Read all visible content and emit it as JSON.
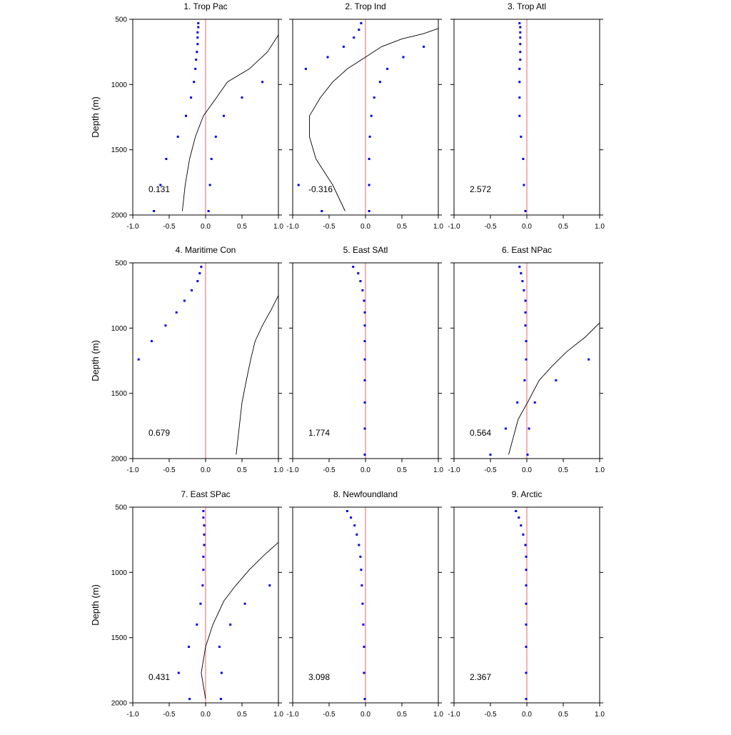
{
  "chart_data": {
    "type": "scatter",
    "layout": {
      "rows": 3,
      "cols": 3
    },
    "shared": {
      "ylabel": "Depth (m)",
      "y_reversed": true,
      "ylim": [
        500,
        2000
      ],
      "yticks": [
        500,
        1000,
        1500,
        2000
      ],
      "xlim": [
        -1.0,
        1.0
      ],
      "xticks": [
        -1.0,
        -0.5,
        0.0,
        0.5,
        1.0
      ],
      "xtick_labels": [
        "-1.0",
        "-0.5",
        "0.0",
        "0.5",
        "1.0"
      ],
      "ytick_labels": [
        "500",
        "1000",
        "1500",
        "2000"
      ],
      "grid": false,
      "zero_line_color": "#f08080",
      "dot_color": "#0000ee",
      "curve_color": "#000000"
    },
    "panels": [
      {
        "title": "1. Trop Pac",
        "score": "0.131",
        "dots_a": [
          [
            -0.1,
            530
          ],
          [
            -0.1,
            560
          ],
          [
            -0.11,
            600
          ],
          [
            -0.11,
            640
          ],
          [
            -0.11,
            690
          ],
          [
            -0.12,
            750
          ],
          [
            -0.13,
            810
          ],
          [
            -0.14,
            880
          ],
          [
            -0.16,
            980
          ],
          [
            -0.2,
            1100
          ],
          [
            -0.27,
            1240
          ],
          [
            -0.38,
            1400
          ],
          [
            -0.54,
            1570
          ],
          [
            -0.62,
            1770
          ],
          [
            -0.71,
            1970
          ]
        ],
        "dots_b": [
          [
            0.78,
            980
          ],
          [
            0.5,
            1100
          ],
          [
            0.25,
            1240
          ],
          [
            0.14,
            1400
          ],
          [
            0.08,
            1570
          ],
          [
            0.06,
            1770
          ],
          [
            0.04,
            1970
          ]
        ],
        "curve": [
          [
            1.0,
            620
          ],
          [
            0.85,
            750
          ],
          [
            0.6,
            880
          ],
          [
            0.3,
            980
          ],
          [
            0.15,
            1100
          ],
          [
            -0.03,
            1240
          ],
          [
            -0.14,
            1400
          ],
          [
            -0.22,
            1570
          ],
          [
            -0.28,
            1770
          ],
          [
            -0.32,
            1970
          ]
        ]
      },
      {
        "title": "2. Trop Ind",
        "score": "-0.316",
        "dots_a": [
          [
            -0.06,
            530
          ],
          [
            -0.09,
            580
          ],
          [
            -0.16,
            640
          ],
          [
            -0.3,
            710
          ],
          [
            -0.52,
            790
          ],
          [
            -0.82,
            880
          ],
          [
            -0.92,
            1770
          ],
          [
            -0.6,
            1970
          ]
        ],
        "dots_b": [
          [
            0.8,
            710
          ],
          [
            0.52,
            790
          ],
          [
            0.3,
            880
          ],
          [
            0.2,
            980
          ],
          [
            0.12,
            1100
          ],
          [
            0.08,
            1240
          ],
          [
            0.06,
            1400
          ],
          [
            0.05,
            1570
          ],
          [
            0.05,
            1770
          ],
          [
            0.05,
            1970
          ]
        ],
        "curve": [
          [
            1.0,
            570
          ],
          [
            0.8,
            610
          ],
          [
            0.5,
            650
          ],
          [
            0.22,
            710
          ],
          [
            0.0,
            790
          ],
          [
            -0.25,
            880
          ],
          [
            -0.45,
            980
          ],
          [
            -0.62,
            1100
          ],
          [
            -0.77,
            1240
          ],
          [
            -0.77,
            1400
          ],
          [
            -0.68,
            1570
          ],
          [
            -0.45,
            1770
          ],
          [
            -0.28,
            1970
          ]
        ]
      },
      {
        "title": "3. Trop Atl",
        "score": "2.572",
        "dots_a": [
          [
            -0.1,
            530
          ],
          [
            -0.09,
            560
          ],
          [
            -0.09,
            600
          ],
          [
            -0.09,
            640
          ],
          [
            -0.09,
            690
          ],
          [
            -0.09,
            750
          ],
          [
            -0.09,
            810
          ],
          [
            -0.1,
            880
          ],
          [
            -0.1,
            980
          ],
          [
            -0.1,
            1100
          ],
          [
            -0.1,
            1240
          ],
          [
            -0.08,
            1400
          ],
          [
            -0.05,
            1570
          ],
          [
            -0.04,
            1770
          ],
          [
            -0.02,
            1970
          ]
        ],
        "dots_b": [],
        "curve": []
      },
      {
        "title": "4. Maritime Con",
        "score": "0.679",
        "dots_a": [
          [
            -0.06,
            530
          ],
          [
            -0.08,
            580
          ],
          [
            -0.11,
            640
          ],
          [
            -0.19,
            710
          ],
          [
            -0.29,
            790
          ],
          [
            -0.4,
            880
          ],
          [
            -0.55,
            980
          ],
          [
            -0.74,
            1100
          ],
          [
            -0.92,
            1240
          ]
        ],
        "dots_b": [],
        "curve": [
          [
            1.0,
            750
          ],
          [
            0.9,
            860
          ],
          [
            0.78,
            980
          ],
          [
            0.68,
            1100
          ],
          [
            0.62,
            1240
          ],
          [
            0.56,
            1400
          ],
          [
            0.5,
            1570
          ],
          [
            0.46,
            1770
          ],
          [
            0.42,
            1970
          ]
        ]
      },
      {
        "title": "5. East SAtl",
        "score": "1.774",
        "dots_a": [
          [
            -0.17,
            530
          ],
          [
            -0.1,
            580
          ],
          [
            -0.07,
            640
          ],
          [
            -0.04,
            710
          ],
          [
            -0.02,
            790
          ],
          [
            -0.01,
            880
          ],
          [
            -0.01,
            980
          ],
          [
            -0.01,
            1100
          ],
          [
            -0.01,
            1240
          ],
          [
            -0.01,
            1400
          ],
          [
            -0.01,
            1570
          ],
          [
            -0.01,
            1770
          ],
          [
            -0.01,
            1970
          ]
        ],
        "dots_b": [],
        "curve": []
      },
      {
        "title": "6. East NPac",
        "score": "0.564",
        "dots_a": [
          [
            -0.1,
            530
          ],
          [
            -0.08,
            580
          ],
          [
            -0.06,
            640
          ],
          [
            -0.04,
            710
          ],
          [
            -0.02,
            790
          ],
          [
            -0.02,
            880
          ],
          [
            -0.02,
            980
          ],
          [
            -0.01,
            1100
          ],
          [
            -0.01,
            1240
          ],
          [
            -0.03,
            1400
          ],
          [
            -0.13,
            1570
          ],
          [
            -0.29,
            1770
          ],
          [
            -0.5,
            1970
          ]
        ],
        "dots_b": [
          [
            0.85,
            1240
          ],
          [
            0.4,
            1400
          ],
          [
            0.11,
            1570
          ],
          [
            0.03,
            1770
          ],
          [
            0.01,
            1970
          ]
        ],
        "curve": [
          [
            1.0,
            960
          ],
          [
            0.8,
            1070
          ],
          [
            0.55,
            1180
          ],
          [
            0.35,
            1290
          ],
          [
            0.17,
            1400
          ],
          [
            0.02,
            1560
          ],
          [
            -0.12,
            1700
          ],
          [
            -0.25,
            1970
          ]
        ]
      },
      {
        "title": "7. East SPac",
        "score": "0.431",
        "dots_a": [
          [
            -0.03,
            530
          ],
          [
            -0.03,
            580
          ],
          [
            -0.02,
            640
          ],
          [
            -0.02,
            710
          ],
          [
            -0.02,
            790
          ],
          [
            -0.03,
            880
          ],
          [
            -0.03,
            980
          ],
          [
            -0.04,
            1100
          ],
          [
            -0.07,
            1240
          ],
          [
            -0.12,
            1400
          ],
          [
            -0.23,
            1570
          ],
          [
            -0.37,
            1770
          ],
          [
            -0.22,
            1970
          ]
        ],
        "dots_b": [
          [
            0.88,
            1100
          ],
          [
            0.54,
            1240
          ],
          [
            0.34,
            1400
          ],
          [
            0.19,
            1570
          ],
          [
            0.22,
            1770
          ],
          [
            0.21,
            1970
          ]
        ],
        "curve": [
          [
            1.0,
            770
          ],
          [
            0.8,
            870
          ],
          [
            0.6,
            980
          ],
          [
            0.4,
            1110
          ],
          [
            0.25,
            1220
          ],
          [
            0.1,
            1400
          ],
          [
            0.0,
            1570
          ],
          [
            -0.06,
            1770
          ],
          [
            0.0,
            1970
          ]
        ]
      },
      {
        "title": "8. Newfoundland",
        "score": "3.098",
        "dots_a": [
          [
            -0.25,
            530
          ],
          [
            -0.2,
            580
          ],
          [
            -0.15,
            640
          ],
          [
            -0.12,
            710
          ],
          [
            -0.09,
            790
          ],
          [
            -0.07,
            880
          ],
          [
            -0.06,
            980
          ],
          [
            -0.05,
            1100
          ],
          [
            -0.04,
            1240
          ],
          [
            -0.03,
            1400
          ],
          [
            -0.02,
            1570
          ],
          [
            -0.02,
            1770
          ],
          [
            -0.01,
            1970
          ]
        ],
        "dots_b": [],
        "curve": []
      },
      {
        "title": "9. Arctic",
        "score": "2.367",
        "dots_a": [
          [
            -0.15,
            530
          ],
          [
            -0.11,
            580
          ],
          [
            -0.08,
            640
          ],
          [
            -0.05,
            710
          ],
          [
            -0.02,
            790
          ],
          [
            -0.01,
            880
          ],
          [
            -0.01,
            980
          ],
          [
            -0.01,
            1100
          ],
          [
            -0.01,
            1240
          ],
          [
            -0.01,
            1400
          ],
          [
            -0.01,
            1570
          ],
          [
            -0.01,
            1770
          ],
          [
            -0.01,
            1970
          ]
        ],
        "dots_b": [],
        "curve": []
      }
    ]
  }
}
